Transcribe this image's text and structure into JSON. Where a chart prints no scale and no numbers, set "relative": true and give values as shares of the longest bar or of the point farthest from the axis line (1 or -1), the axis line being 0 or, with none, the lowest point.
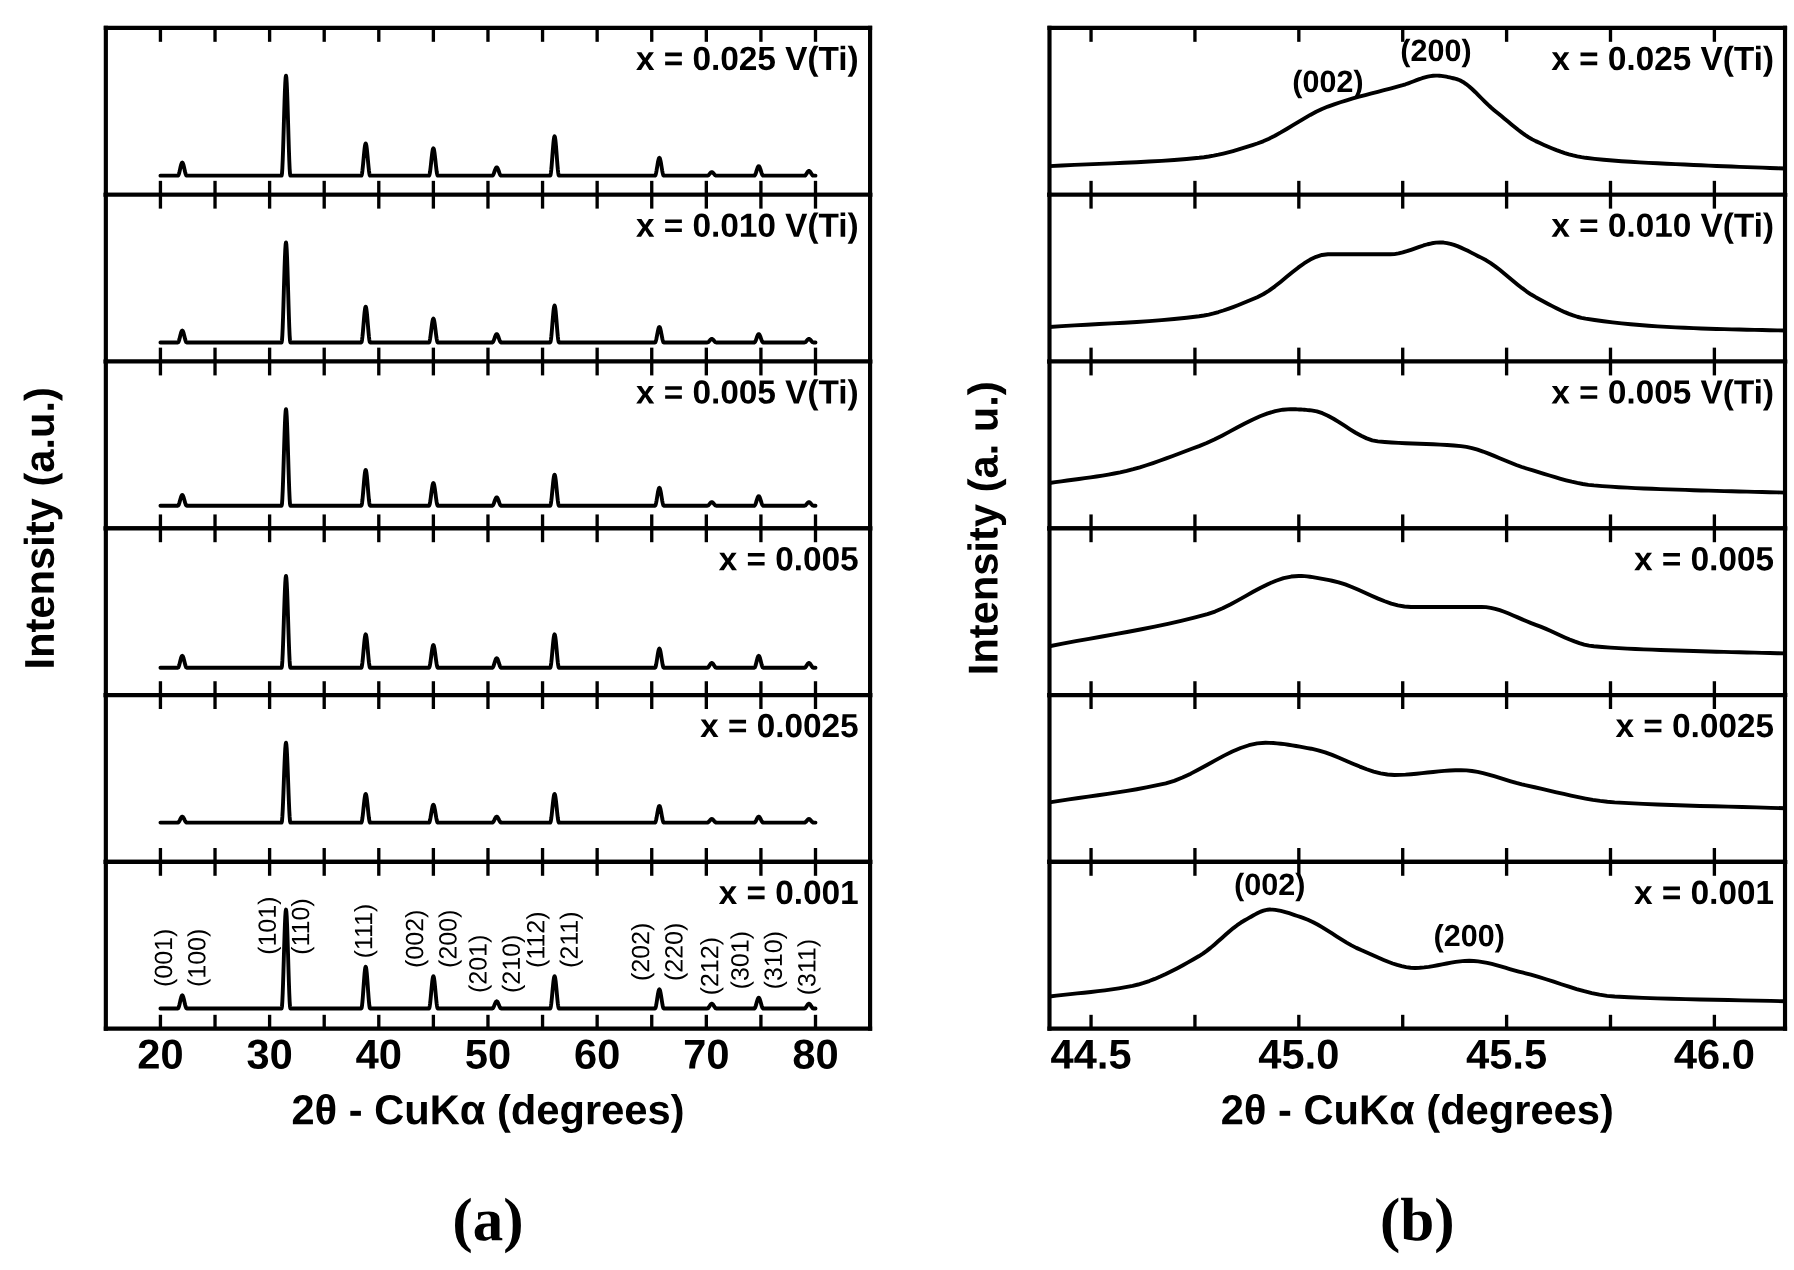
{
  "chart_data": [
    {
      "type": "line",
      "relative": true,
      "ylabel": "Intensity (a.u.)",
      "tick_labels": false,
      "annotations": [
        "x = 0.025 V(Ti)"
      ],
      "xlim": [
        15,
        85
      ],
      "xticks": [
        {
          "value": 20,
          "label": null
        },
        {
          "value": 25,
          "label": null
        },
        {
          "value": 30,
          "label": null
        },
        {
          "value": 35,
          "label": null
        },
        {
          "value": 40,
          "label": null
        },
        {
          "value": 45,
          "label": null
        },
        {
          "value": 50,
          "label": null
        },
        {
          "value": 55,
          "label": null
        },
        {
          "value": 60,
          "label": null
        },
        {
          "value": 65,
          "label": null
        },
        {
          "value": 70,
          "label": null
        },
        {
          "value": 75,
          "label": null
        },
        {
          "value": 80,
          "label": null
        }
      ],
      "x": [
        20,
        21.6,
        22,
        22.4,
        31.1,
        31.5,
        31.9,
        38.4,
        38.8,
        39.2,
        44.6,
        45,
        45.4,
        50.4,
        50.8,
        51.2,
        55.7,
        56.1,
        56.5,
        65.3,
        65.7,
        66.1,
        70.1,
        70.5,
        70.9,
        74.4,
        74.8,
        75.2,
        79,
        79.4,
        79.8,
        80
      ],
      "series": [
        {
          "color": "#000000",
          "values": [
            0.16,
            0.16,
            0.27,
            0.16,
            0.16,
            1,
            0.16,
            0.16,
            0.43,
            0.16,
            0.16,
            0.39,
            0.16,
            0.16,
            0.23,
            0.16,
            0.16,
            0.49,
            0.16,
            0.16,
            0.31,
            0.16,
            0.16,
            0.19,
            0.16,
            0.16,
            0.24,
            0.16,
            0.16,
            0.2,
            0.16,
            0.16
          ]
        }
      ]
    },
    {
      "type": "line",
      "relative": true,
      "tick_labels": false,
      "annotations": [
        "x = 0.010 V(Ti)"
      ],
      "xlim": [
        15,
        85
      ],
      "xticks": [
        {
          "value": 20,
          "label": null
        },
        {
          "value": 25,
          "label": null
        },
        {
          "value": 30,
          "label": null
        },
        {
          "value": 35,
          "label": null
        },
        {
          "value": 40,
          "label": null
        },
        {
          "value": 45,
          "label": null
        },
        {
          "value": 50,
          "label": null
        },
        {
          "value": 55,
          "label": null
        },
        {
          "value": 60,
          "label": null
        },
        {
          "value": 65,
          "label": null
        },
        {
          "value": 70,
          "label": null
        },
        {
          "value": 75,
          "label": null
        },
        {
          "value": 80,
          "label": null
        }
      ],
      "x": [
        20,
        21.6,
        22,
        22.4,
        31.1,
        31.5,
        31.9,
        38.4,
        38.8,
        39.2,
        44.6,
        45,
        45.4,
        50.4,
        50.8,
        51.2,
        55.7,
        56.1,
        56.5,
        65.3,
        65.7,
        66.1,
        70.1,
        70.5,
        70.9,
        74.4,
        74.8,
        75.2,
        79,
        79.4,
        79.8,
        80
      ],
      "series": [
        {
          "color": "#000000",
          "values": [
            0.16,
            0.16,
            0.26,
            0.16,
            0.16,
            1,
            0.16,
            0.16,
            0.46,
            0.16,
            0.16,
            0.36,
            0.16,
            0.16,
            0.23,
            0.16,
            0.16,
            0.47,
            0.16,
            0.16,
            0.29,
            0.16,
            0.16,
            0.19,
            0.16,
            0.16,
            0.23,
            0.16,
            0.16,
            0.19,
            0.16,
            0.16
          ]
        }
      ]
    },
    {
      "type": "line",
      "relative": true,
      "tick_labels": false,
      "annotations": [
        "x = 0.005 V(Ti)"
      ],
      "xlim": [
        15,
        85
      ],
      "xticks": [
        {
          "value": 20,
          "label": null
        },
        {
          "value": 25,
          "label": null
        },
        {
          "value": 30,
          "label": null
        },
        {
          "value": 35,
          "label": null
        },
        {
          "value": 40,
          "label": null
        },
        {
          "value": 45,
          "label": null
        },
        {
          "value": 50,
          "label": null
        },
        {
          "value": 55,
          "label": null
        },
        {
          "value": 60,
          "label": null
        },
        {
          "value": 65,
          "label": null
        },
        {
          "value": 70,
          "label": null
        },
        {
          "value": 75,
          "label": null
        },
        {
          "value": 80,
          "label": null
        }
      ],
      "x": [
        20,
        21.6,
        22,
        22.4,
        31.1,
        31.5,
        31.9,
        38.4,
        38.8,
        39.2,
        44.6,
        45,
        45.4,
        50.4,
        50.8,
        51.2,
        55.7,
        56.1,
        56.5,
        65.3,
        65.7,
        66.1,
        70.1,
        70.5,
        70.9,
        74.4,
        74.8,
        75.2,
        79,
        79.4,
        79.8,
        80
      ],
      "series": [
        {
          "color": "#000000",
          "values": [
            0.19,
            0.19,
            0.28,
            0.19,
            0.19,
            1,
            0.19,
            0.19,
            0.49,
            0.19,
            0.19,
            0.38,
            0.19,
            0.19,
            0.26,
            0.19,
            0.19,
            0.45,
            0.19,
            0.19,
            0.34,
            0.19,
            0.19,
            0.22,
            0.19,
            0.19,
            0.27,
            0.19,
            0.19,
            0.22,
            0.19,
            0.19
          ]
        }
      ]
    },
    {
      "type": "line",
      "relative": true,
      "tick_labels": false,
      "annotations": [
        "x = 0.005"
      ],
      "xlim": [
        15,
        85
      ],
      "xticks": [
        {
          "value": 20,
          "label": null
        },
        {
          "value": 25,
          "label": null
        },
        {
          "value": 30,
          "label": null
        },
        {
          "value": 35,
          "label": null
        },
        {
          "value": 40,
          "label": null
        },
        {
          "value": 45,
          "label": null
        },
        {
          "value": 50,
          "label": null
        },
        {
          "value": 55,
          "label": null
        },
        {
          "value": 60,
          "label": null
        },
        {
          "value": 65,
          "label": null
        },
        {
          "value": 70,
          "label": null
        },
        {
          "value": 75,
          "label": null
        },
        {
          "value": 80,
          "label": null
        }
      ],
      "x": [
        20,
        21.6,
        22,
        22.4,
        31.1,
        31.5,
        31.9,
        38.4,
        38.8,
        39.2,
        44.6,
        45,
        45.4,
        50.4,
        50.8,
        51.2,
        55.7,
        56.1,
        56.5,
        65.3,
        65.7,
        66.1,
        70.1,
        70.5,
        70.9,
        74.4,
        74.8,
        75.2,
        79,
        79.4,
        79.8,
        80
      ],
      "series": [
        {
          "color": "#000000",
          "values": [
            0.23,
            0.23,
            0.33,
            0.23,
            0.23,
            1,
            0.23,
            0.23,
            0.51,
            0.23,
            0.23,
            0.42,
            0.23,
            0.23,
            0.31,
            0.23,
            0.23,
            0.51,
            0.23,
            0.23,
            0.39,
            0.23,
            0.23,
            0.27,
            0.23,
            0.23,
            0.33,
            0.23,
            0.23,
            0.27,
            0.23,
            0.23
          ]
        }
      ]
    },
    {
      "type": "line",
      "relative": true,
      "tick_labels": false,
      "annotations": [
        "x = 0.0025"
      ],
      "xlim": [
        15,
        85
      ],
      "xticks": [
        {
          "value": 20,
          "label": null
        },
        {
          "value": 25,
          "label": null
        },
        {
          "value": 30,
          "label": null
        },
        {
          "value": 35,
          "label": null
        },
        {
          "value": 40,
          "label": null
        },
        {
          "value": 45,
          "label": null
        },
        {
          "value": 50,
          "label": null
        },
        {
          "value": 55,
          "label": null
        },
        {
          "value": 60,
          "label": null
        },
        {
          "value": 65,
          "label": null
        },
        {
          "value": 70,
          "label": null
        },
        {
          "value": 75,
          "label": null
        },
        {
          "value": 80,
          "label": null
        }
      ],
      "x": [
        20,
        21.6,
        22,
        22.4,
        31.1,
        31.5,
        31.9,
        38.4,
        38.8,
        39.2,
        44.6,
        45,
        45.4,
        50.4,
        50.8,
        51.2,
        55.7,
        56.1,
        56.5,
        65.3,
        65.7,
        66.1,
        70.1,
        70.5,
        70.9,
        74.4,
        74.8,
        75.2,
        79,
        79.4,
        79.8,
        80
      ],
      "series": [
        {
          "color": "#000000",
          "values": [
            0.33,
            0.33,
            0.38,
            0.33,
            0.33,
            1,
            0.33,
            0.33,
            0.57,
            0.33,
            0.33,
            0.48,
            0.33,
            0.33,
            0.38,
            0.33,
            0.33,
            0.57,
            0.33,
            0.33,
            0.47,
            0.33,
            0.33,
            0.36,
            0.33,
            0.33,
            0.38,
            0.33,
            0.33,
            0.36,
            0.33,
            0.33
          ]
        }
      ]
    },
    {
      "type": "line",
      "relative": true,
      "tick_labels": "x",
      "xlabel": "2θ - CuKα (degrees)",
      "xlim": [
        15,
        85
      ],
      "xticks": [
        20,
        {
          "value": 25,
          "label": null
        },
        30,
        {
          "value": 35,
          "label": null
        },
        40,
        {
          "value": 45,
          "label": null
        },
        50,
        {
          "value": 55,
          "label": null
        },
        60,
        {
          "value": 65,
          "label": null
        },
        70,
        {
          "value": 75,
          "label": null
        },
        80
      ],
      "annotations": [
        "x = 0.001",
        "(a)",
        {
          "text": "(001)",
          "x": 22,
          "y": 0.28
        },
        {
          "text": "(100)",
          "x": 22,
          "y": 0.28
        },
        {
          "text": "(101)",
          "x": 31.5,
          "y": 1
        },
        {
          "text": "(110)",
          "x": 31.5,
          "y": 1
        },
        {
          "text": "(111)",
          "x": 38.8,
          "y": 0.52
        },
        {
          "text": "(002)",
          "x": 45,
          "y": 0.44
        },
        {
          "text": "(200)",
          "x": 45,
          "y": 0.44
        },
        {
          "text": "(201)",
          "x": 50.8,
          "y": 0.23
        },
        {
          "text": "(210)",
          "x": 50.8,
          "y": 0.23
        },
        {
          "text": "(112)",
          "x": 56.1,
          "y": 0.44
        },
        {
          "text": "(211)",
          "x": 56.1,
          "y": 0.44
        },
        {
          "text": "(202)",
          "x": 65.7,
          "y": 0.33
        },
        {
          "text": "(220)",
          "x": 65.7,
          "y": 0.33
        },
        {
          "text": "(212)",
          "x": 70.5,
          "y": 0.21
        },
        {
          "text": "(301)",
          "x": 74.8,
          "y": 0.26
        },
        {
          "text": "(310)",
          "x": 74.8,
          "y": 0.26
        },
        {
          "text": "(311)",
          "x": 79.4,
          "y": 0.21
        }
      ],
      "x": [
        20,
        21.6,
        22,
        22.4,
        31.1,
        31.5,
        31.9,
        38.4,
        38.8,
        39.2,
        44.6,
        45,
        45.4,
        50.4,
        50.8,
        51.2,
        55.7,
        56.1,
        56.5,
        65.3,
        65.7,
        66.1,
        70.1,
        70.5,
        70.9,
        74.4,
        74.8,
        75.2,
        79,
        79.4,
        79.8,
        80
      ],
      "series": [
        {
          "color": "#000000",
          "values": [
            0.17,
            0.17,
            0.28,
            0.17,
            0.17,
            1,
            0.17,
            0.17,
            0.52,
            0.17,
            0.17,
            0.44,
            0.17,
            0.17,
            0.23,
            0.17,
            0.17,
            0.44,
            0.17,
            0.17,
            0.33,
            0.17,
            0.17,
            0.21,
            0.17,
            0.17,
            0.26,
            0.17,
            0.17,
            0.21,
            0.17,
            0.17
          ]
        }
      ]
    },
    {
      "type": "line",
      "relative": true,
      "ylabel": "Intensity (a. u.)",
      "tick_labels": false,
      "xlim": [
        44.4,
        46.17
      ],
      "xticks": [
        {
          "value": 44.5,
          "label": null
        },
        {
          "value": 44.75,
          "label": null
        },
        {
          "value": 45,
          "label": null
        },
        {
          "value": 45.25,
          "label": null
        },
        {
          "value": 45.5,
          "label": null
        },
        {
          "value": 45.75,
          "label": null
        },
        {
          "value": 46,
          "label": null
        }
      ],
      "annotations": [
        "x = 0.025 V(Ti)",
        {
          "text": "(002)",
          "x": 45.07,
          "y": 0.74
        },
        {
          "text": "(200)",
          "x": 45.33,
          "y": 1
        }
      ],
      "x": [
        44.4,
        44.76,
        44.9,
        45.07,
        45.25,
        45.33,
        45.38,
        45.47,
        45.57,
        45.69,
        45.95,
        46.17
      ],
      "series": [
        {
          "color": "#000000",
          "values": [
            0.24,
            0.31,
            0.43,
            0.74,
            0.92,
            1,
            0.97,
            0.71,
            0.45,
            0.31,
            0.25,
            0.22
          ]
        }
      ]
    },
    {
      "type": "line",
      "relative": true,
      "tick_labels": false,
      "xlim": [
        44.4,
        46.17
      ],
      "xticks": [
        {
          "value": 44.5,
          "label": null
        },
        {
          "value": 44.75,
          "label": null
        },
        {
          "value": 45,
          "label": null
        },
        {
          "value": 45.25,
          "label": null
        },
        {
          "value": 45.5,
          "label": null
        },
        {
          "value": 45.75,
          "label": null
        },
        {
          "value": 46,
          "label": null
        }
      ],
      "annotations": [
        "x = 0.010 V(Ti)"
      ],
      "x": [
        44.4,
        44.76,
        44.9,
        45.07,
        45.22,
        45.34,
        45.44,
        45.57,
        45.69,
        45.95,
        46.17
      ],
      "series": [
        {
          "color": "#000000",
          "values": [
            0.29,
            0.38,
            0.54,
            0.9,
            0.9,
            1,
            0.87,
            0.54,
            0.36,
            0.28,
            0.26
          ]
        }
      ]
    },
    {
      "type": "line",
      "relative": true,
      "tick_labels": false,
      "xlim": [
        44.4,
        46.17
      ],
      "xticks": [
        {
          "value": 44.5,
          "label": null
        },
        {
          "value": 44.75,
          "label": null
        },
        {
          "value": 45,
          "label": null
        },
        {
          "value": 45.25,
          "label": null
        },
        {
          "value": 45.5,
          "label": null
        },
        {
          "value": 45.75,
          "label": null
        },
        {
          "value": 46,
          "label": null
        }
      ],
      "annotations": [
        "x = 0.005 V(Ti)"
      ],
      "x": [
        44.4,
        44.57,
        44.76,
        44.98,
        45.03,
        45.19,
        45.39,
        45.55,
        45.71,
        45.95,
        46.17
      ],
      "series": [
        {
          "color": "#000000",
          "values": [
            0.38,
            0.47,
            0.69,
            1,
            0.99,
            0.73,
            0.69,
            0.5,
            0.36,
            0.32,
            0.3
          ]
        }
      ]
    },
    {
      "type": "line",
      "relative": true,
      "tick_labels": false,
      "xlim": [
        44.4,
        46.17
      ],
      "xticks": [
        {
          "value": 44.5,
          "label": null
        },
        {
          "value": 44.75,
          "label": null
        },
        {
          "value": 45,
          "label": null
        },
        {
          "value": 45.25,
          "label": null
        },
        {
          "value": 45.5,
          "label": null
        },
        {
          "value": 45.75,
          "label": null
        },
        {
          "value": 46,
          "label": null
        }
      ],
      "annotations": [
        "x = 0.005"
      ],
      "x": [
        44.4,
        44.78,
        45.0,
        45.08,
        45.27,
        45.44,
        45.57,
        45.71,
        45.95,
        46.17
      ],
      "series": [
        {
          "color": "#000000",
          "values": [
            0.41,
            0.68,
            1,
            0.96,
            0.74,
            0.74,
            0.59,
            0.41,
            0.37,
            0.35
          ]
        }
      ]
    },
    {
      "type": "line",
      "relative": true,
      "tick_labels": false,
      "xlim": [
        44.4,
        46.17
      ],
      "xticks": [
        {
          "value": 44.5,
          "label": null
        },
        {
          "value": 44.75,
          "label": null
        },
        {
          "value": 45,
          "label": null
        },
        {
          "value": 45.25,
          "label": null
        },
        {
          "value": 45.5,
          "label": null
        },
        {
          "value": 45.75,
          "label": null
        },
        {
          "value": 46,
          "label": null
        }
      ],
      "annotations": [
        "x = 0.0025"
      ],
      "x": [
        44.4,
        44.68,
        44.92,
        45.03,
        45.23,
        45.39,
        45.55,
        45.76,
        46.17
      ],
      "series": [
        {
          "color": "#000000",
          "values": [
            0.5,
            0.66,
            1,
            0.95,
            0.73,
            0.77,
            0.64,
            0.5,
            0.45
          ]
        }
      ]
    },
    {
      "type": "line",
      "relative": true,
      "tick_labels": "x",
      "xlabel": "2θ - CuKα (degrees)",
      "xlim": [
        44.4,
        46.17
      ],
      "xticks": [
        {
          "value": 44.5,
          "label": "44.5"
        },
        {
          "value": 44.75,
          "label": null
        },
        {
          "value": 45,
          "label": "45.0"
        },
        {
          "value": 45.25,
          "label": null
        },
        {
          "value": 45.5,
          "label": "45.5"
        },
        {
          "value": 45.75,
          "label": null
        },
        {
          "value": 46,
          "label": "46.0"
        }
      ],
      "annotations": [
        "x = 0.001",
        "(b)",
        {
          "text": "(002)",
          "x": 44.93,
          "y": 1
        },
        {
          "text": "(200)",
          "x": 45.41,
          "y": 0.57
        }
      ],
      "x": [
        44.4,
        44.6,
        44.76,
        44.87,
        44.93,
        45.01,
        45.15,
        45.28,
        45.41,
        45.54,
        45.76,
        46.17
      ],
      "series": [
        {
          "color": "#000000",
          "values": [
            0.27,
            0.36,
            0.61,
            0.91,
            1,
            0.93,
            0.66,
            0.51,
            0.57,
            0.47,
            0.27,
            0.23
          ]
        }
      ]
    }
  ]
}
